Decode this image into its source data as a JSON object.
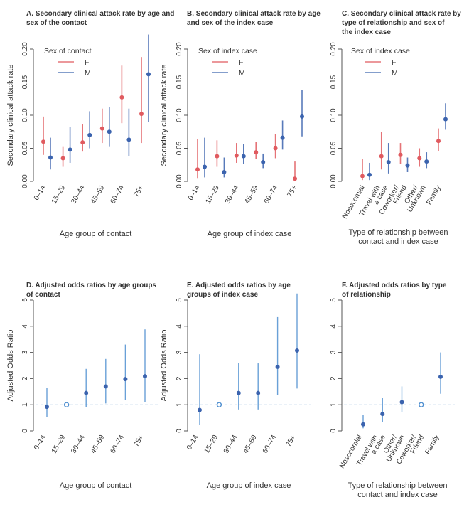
{
  "colors": {
    "female": "#e05a5f",
    "male": "#3b63ae",
    "or": "#4f8fd0",
    "ref_line": "#a9c7e6",
    "axis": "#555555",
    "text": "#333333"
  },
  "chart_data": [
    {
      "id": "A",
      "type": "scatter",
      "title": [
        "A. Secondary clinical attack rate by age and",
        "sex of the contact"
      ],
      "xlabel": [
        "Age group of contact"
      ],
      "ylabel": "Secondary clinical attack rate",
      "ylim": [
        0,
        0.2
      ],
      "yticks": [
        "0.00",
        "0.05",
        "0.10",
        "0.15",
        "0.20"
      ],
      "legend_title": "Sex of contact",
      "legend_position": "top-left",
      "categories": [
        "0–14",
        "15–29",
        "30–44",
        "45–59",
        "60–74",
        "75+"
      ],
      "series": [
        {
          "name": "F",
          "values": [
            0.06,
            0.035,
            0.059,
            0.08,
            0.127,
            0.102
          ],
          "lower": [
            0.04,
            0.022,
            0.045,
            0.058,
            0.088,
            0.058
          ],
          "upper": [
            0.098,
            0.052,
            0.086,
            0.11,
            0.175,
            0.188
          ]
        },
        {
          "name": "M",
          "values": [
            0.036,
            0.048,
            0.07,
            0.075,
            0.063,
            0.162
          ],
          "lower": [
            0.018,
            0.028,
            0.05,
            0.052,
            0.038,
            0.09
          ],
          "upper": [
            0.066,
            0.082,
            0.106,
            0.112,
            0.11,
            0.222
          ]
        }
      ]
    },
    {
      "id": "B",
      "type": "scatter",
      "title": [
        "B. Secondary clinical attack rate by age",
        "and sex of the index case"
      ],
      "xlabel": [
        "Age group of index case"
      ],
      "ylabel": "Secondary clinical attack rate",
      "ylim": [
        0,
        0.2
      ],
      "yticks": [
        "0.00",
        "0.05",
        "0.10",
        "0.15",
        "0.20"
      ],
      "legend_title": "Sex of index case",
      "legend_position": "top-left",
      "categories": [
        "0–14",
        "15–29",
        "30–44",
        "45–59",
        "60–74",
        "75+"
      ],
      "series": [
        {
          "name": "F",
          "values": [
            0.018,
            0.038,
            0.039,
            0.044,
            0.05,
            0.004
          ],
          "lower": [
            0.004,
            0.022,
            0.028,
            0.034,
            0.035,
            0.0
          ],
          "upper": [
            0.064,
            0.062,
            0.058,
            0.06,
            0.072,
            0.03
          ]
        },
        {
          "name": "M",
          "values": [
            0.022,
            0.014,
            0.038,
            0.029,
            0.066,
            0.098
          ],
          "lower": [
            0.006,
            0.006,
            0.026,
            0.02,
            0.048,
            0.068
          ],
          "upper": [
            0.066,
            0.036,
            0.056,
            0.042,
            0.092,
            0.138
          ]
        }
      ]
    },
    {
      "id": "C",
      "type": "scatter",
      "title": [
        "C. Secondary clinical attack rate by",
        "type of relationship and sex of",
        "the index case"
      ],
      "xlabel": [
        "Type of relationship between",
        "contact and index case"
      ],
      "ylabel": "",
      "ylim": [
        0,
        0.2
      ],
      "yticks": [
        "0.00",
        "0.05",
        "0.10",
        "0.15",
        "0.20"
      ],
      "legend_title": "Sex of index case",
      "legend_position": "top-left",
      "categories": [
        [
          "Nosocomial"
        ],
        [
          "Travel with",
          "a case"
        ],
        [
          "Coworker/",
          "Friend"
        ],
        [
          "Other/",
          "Unknown"
        ],
        [
          "Family"
        ]
      ],
      "series": [
        {
          "name": "F",
          "values": [
            0.008,
            0.038,
            0.04,
            0.035,
            0.061
          ],
          "lower": [
            0.002,
            0.018,
            0.026,
            0.022,
            0.046
          ],
          "upper": [
            0.034,
            0.075,
            0.058,
            0.05,
            0.08
          ]
        },
        {
          "name": "M",
          "values": [
            0.01,
            0.029,
            0.024,
            0.03,
            0.094
          ],
          "lower": [
            0.002,
            0.012,
            0.014,
            0.02,
            0.078
          ],
          "upper": [
            0.028,
            0.058,
            0.036,
            0.044,
            0.118
          ]
        }
      ]
    },
    {
      "id": "D",
      "type": "scatter",
      "title": [
        "D. Adjusted odds ratios by age groups",
        "of contact"
      ],
      "xlabel": [
        "Age group of contact"
      ],
      "ylabel": "Adjusted Odds Ratio",
      "ylim": [
        0,
        5
      ],
      "yticks": [
        "0",
        "1",
        "2",
        "3",
        "4",
        "5"
      ],
      "reference_line": 1,
      "categories": [
        "0–14",
        "15–29",
        "30–44",
        "45–59",
        "60–74",
        "75+"
      ],
      "series": [
        {
          "name": "Adjusted OR",
          "values": [
            0.92,
            1.0,
            1.45,
            1.7,
            1.98,
            2.09
          ],
          "lower": [
            0.52,
            1.0,
            0.9,
            1.05,
            1.18,
            1.1
          ],
          "upper": [
            1.65,
            1.0,
            2.37,
            2.75,
            3.3,
            3.88
          ],
          "reference_index": 1
        }
      ]
    },
    {
      "id": "E",
      "type": "scatter",
      "title": [
        "E. Adjusted odds ratios by age",
        "groups of index case"
      ],
      "xlabel": [
        "Age group of index case"
      ],
      "ylabel": "Adjusted Odds Ratio",
      "ylim": [
        0,
        5
      ],
      "yticks": [
        "0",
        "1",
        "2",
        "3",
        "4",
        "5"
      ],
      "reference_line": 1,
      "categories": [
        "0–14",
        "15–29",
        "30–44",
        "45–59",
        "60–74",
        "75+"
      ],
      "series": [
        {
          "name": "Adjusted OR",
          "values": [
            0.8,
            1.0,
            1.45,
            1.45,
            2.45,
            3.07
          ],
          "lower": [
            0.22,
            1.0,
            0.82,
            0.82,
            1.38,
            1.62
          ],
          "upper": [
            2.93,
            1.0,
            2.6,
            2.58,
            4.35,
            5.25
          ],
          "reference_index": 1
        }
      ]
    },
    {
      "id": "F",
      "type": "scatter",
      "title": [
        "F. Adjusted odds ratios by type",
        "of relationship"
      ],
      "xlabel": [
        "Type of relationship between",
        "contact and index case"
      ],
      "ylabel": "",
      "ylim": [
        0,
        5
      ],
      "yticks": [
        "0",
        "1",
        "2",
        "3",
        "4",
        "5"
      ],
      "reference_line": 1,
      "categories": [
        [
          "Nosocomial"
        ],
        [
          "Travel with",
          "a case"
        ],
        [
          "Other/",
          "Unknown"
        ],
        [
          "Coworker/",
          "Friend"
        ],
        [
          "Family"
        ]
      ],
      "series": [
        {
          "name": "Adjusted OR",
          "values": [
            0.25,
            0.65,
            1.1,
            1.0,
            2.07
          ],
          "lower": [
            0.1,
            0.35,
            0.72,
            1.0,
            1.42
          ],
          "upper": [
            0.62,
            1.25,
            1.7,
            1.0,
            3.0
          ],
          "reference_index": 3
        }
      ]
    }
  ]
}
